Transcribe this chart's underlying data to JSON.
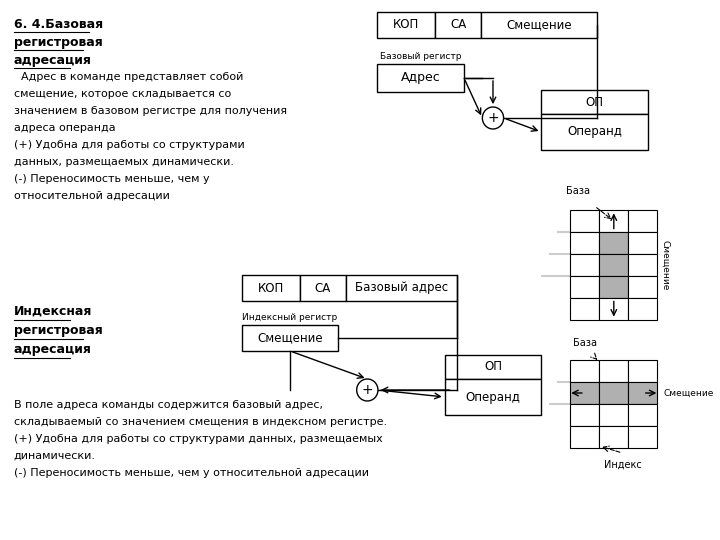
{
  "bg_color": "#ffffff",
  "title_lines": [
    "6. 4.Базовая",
    "регистровая",
    "адресация"
  ],
  "text_block1": [
    "  Адрес в команде представляет собой",
    "смещение, которое складывается со",
    "значением в базовом регистре для получения",
    "адреса операнда",
    "(+) Удобна для работы со структурами",
    "данных, размещаемых динамически.",
    "(-) Переносимость меньше, чем у",
    "относительной адресации"
  ],
  "index_title_lines": [
    "Индексная",
    "регистровая",
    "адресация"
  ],
  "text_block2": [
    "В поле адреса команды содержится базовый адрес,",
    "складываемый со значением смещения в индексном регистре.",
    "(+) Удобна для работы со структурами данных, размещаемых",
    "динамически.",
    "(-) Переносимость меньше, чем у относительной адресации"
  ],
  "top_instruction": [
    "КОП",
    "СА",
    "Смещение"
  ],
  "bot_instruction": [
    "КОП",
    "СА",
    "Базовый адрес"
  ],
  "base_reg_label": "Базовый регистр",
  "addr_text": "Адрес",
  "idx_reg_label": "Индексный регистр",
  "smes_text": "Смещение",
  "op_text": "ОП",
  "operand_text": "Операнд",
  "base_label": "База",
  "smes_label": "Смещение",
  "index_label": "Индекс"
}
